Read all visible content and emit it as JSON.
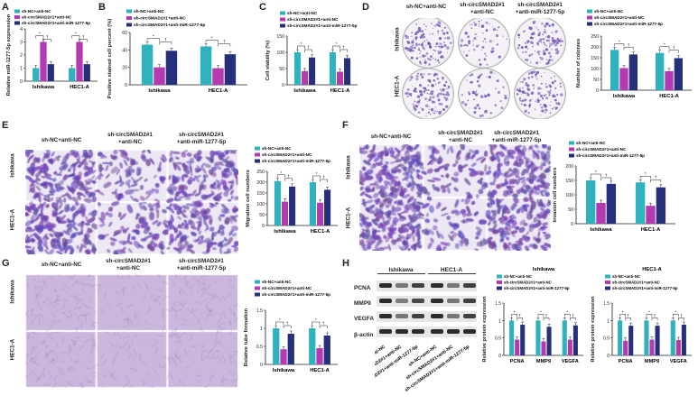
{
  "colors": {
    "teal": "#2eb2bd",
    "magenta": "#b43ab1",
    "navy": "#26307a",
    "stain": "#7a5cb8",
    "stainLight": "#c9bde6"
  },
  "groups": {
    "nc": "sh-NC+anti-NC",
    "circ": "sh-circSMAD2#1+anti-NC",
    "circ_miR": "sh-circSMAD2#1+anti-miR-1277-5p",
    "circ_hdr": "sh-circSMAD2#1",
    "anti_nc": "+anti-NC",
    "anti_mir": "+anti-miR-1277-5p",
    "circ_short": "sh-circSMAD2#1+anti-NC",
    "circ_miR_short": "sh-circSMAD2#1+anti-miR-1277-5p"
  },
  "cell_lines": {
    "ishikawa": "Ishikawa",
    "hec1a": "HEC1-A"
  },
  "panels": {
    "A": "A",
    "B": "B",
    "C": "C",
    "D": "D",
    "E": "E",
    "F": "F",
    "G": "G",
    "H": "H"
  },
  "legend_b": {
    "l1": "sh-NC+anti-NC",
    "l2": "sh-circSMAD2#1+anti-NC",
    "l3": "sh-circSMAD2#1+anti-miR-1277-5p"
  },
  "blot": {
    "top_ishikawa": "Ishikawa",
    "top_hec": "HEC1-A",
    "rows": [
      "PCNA",
      "MMP9",
      "VEGFA",
      "β-actin"
    ],
    "lanes": [
      "sh-NC+anti-NC",
      "sh-circSMAD2#1+anti-NC",
      "sh-circSMAD2#1+anti-miR-1277-5p",
      "sh-NC+anti-NC",
      "sh-circSMAD2#1+anti-NC",
      "sh-circSMAD2#1+anti-miR-1277-5p"
    ]
  },
  "chart_data": [
    {
      "id": "A",
      "type": "bar",
      "ylabel": "Relative miR-1277-5p expression",
      "categories": [
        "Ishikawa",
        "HEC1-A"
      ],
      "ylim": [
        0,
        4
      ],
      "yticks": [
        0,
        1,
        2,
        3,
        4
      ],
      "series": [
        {
          "name": "sh-NC+anti-NC",
          "values": [
            1.0,
            1.0
          ]
        },
        {
          "name": "sh-circSMAD2#1+anti-NC",
          "values": [
            3.0,
            3.0
          ]
        },
        {
          "name": "sh-circSMAD2#1+anti-miR-1277-5p",
          "values": [
            1.3,
            1.3
          ]
        }
      ]
    },
    {
      "id": "B",
      "type": "bar",
      "ylabel": "Positive stained cell percent (%)",
      "categories": [
        "Ishikawa",
        "HEC1-A"
      ],
      "ylim": [
        0,
        60
      ],
      "yticks": [
        0,
        20,
        40,
        60
      ],
      "series": [
        {
          "name": "sh-NC+anti-NC",
          "values": [
            46,
            44
          ]
        },
        {
          "name": "sh-circSMAD2#1+anti-NC",
          "values": [
            20,
            19
          ]
        },
        {
          "name": "sh-circSMAD2#1+anti-miR-1277-5p",
          "values": [
            39,
            35
          ]
        }
      ]
    },
    {
      "id": "C",
      "type": "bar",
      "ylabel": "Cell viability (%)",
      "categories": [
        "Ishikawa",
        "HEC1-A"
      ],
      "ylim": [
        0,
        150
      ],
      "yticks": [
        0,
        50,
        100,
        150
      ],
      "series": [
        {
          "name": "sh-NC+anti-NC",
          "values": [
            100,
            100
          ]
        },
        {
          "name": "sh-circSMAD2#1+anti-NC",
          "values": [
            42,
            40
          ]
        },
        {
          "name": "sh-circSMAD2#1+anti-miR-1277-5p",
          "values": [
            84,
            82
          ]
        }
      ]
    },
    {
      "id": "D",
      "type": "bar",
      "ylabel": "Number of colonies",
      "categories": [
        "Ishikawa",
        "HEC1-A"
      ],
      "ylim": [
        0,
        250
      ],
      "yticks": [
        0,
        50,
        100,
        150,
        200,
        250
      ],
      "series": [
        {
          "name": "sh-NC+anti-NC",
          "values": [
            186,
            172
          ]
        },
        {
          "name": "sh-circSMAD2#1+anti-NC",
          "values": [
            102,
            88
          ]
        },
        {
          "name": "sh-circSMAD2#1+anti-miR-1277-5p",
          "values": [
            165,
            148
          ]
        }
      ]
    },
    {
      "id": "E",
      "type": "bar",
      "ylabel": "Migration cell numbers",
      "categories": [
        "Ishikawa",
        "HEC1-A"
      ],
      "ylim": [
        0,
        250
      ],
      "yticks": [
        0,
        50,
        100,
        150,
        200,
        250
      ],
      "series": [
        {
          "name": "sh-NC+anti-NC",
          "values": [
            205,
            200
          ]
        },
        {
          "name": "sh-circSMAD2#1+anti-NC",
          "values": [
            110,
            105
          ]
        },
        {
          "name": "sh-circSMAD2#1+anti-miR-1277-5p",
          "values": [
            180,
            165
          ]
        }
      ]
    },
    {
      "id": "F",
      "type": "bar",
      "ylabel": "Invasion cell numbers",
      "categories": [
        "Ishikawa",
        "HEC1-A"
      ],
      "ylim": [
        0,
        200
      ],
      "yticks": [
        0,
        50,
        100,
        150,
        200
      ],
      "series": [
        {
          "name": "sh-NC+anti-NC",
          "values": [
            150,
            143
          ]
        },
        {
          "name": "sh-circSMAD2#1+anti-NC",
          "values": [
            72,
            62
          ]
        },
        {
          "name": "sh-circSMAD2#1+anti-miR-1277-5p",
          "values": [
            138,
            126
          ]
        }
      ]
    },
    {
      "id": "G",
      "type": "bar",
      "ylabel": "Relative tube formation",
      "categories": [
        "Ishikawa",
        "HEC1-A"
      ],
      "ylim": [
        0,
        1.5
      ],
      "yticks": [
        0,
        0.5,
        1.0,
        1.5
      ],
      "series": [
        {
          "name": "sh-NC+anti-NC",
          "values": [
            1.0,
            1.0
          ]
        },
        {
          "name": "sh-circSMAD2#1+anti-NC",
          "values": [
            0.42,
            0.45
          ]
        },
        {
          "name": "sh-circSMAD2#1+anti-miR-1277-5p",
          "values": [
            0.85,
            0.8
          ]
        }
      ]
    },
    {
      "id": "H1",
      "type": "bar",
      "title": "Ishikawa",
      "ylabel": "Relative protein expression",
      "categories": [
        "PCNA",
        "MMP9",
        "VEGFA"
      ],
      "ylim": [
        0,
        1.5
      ],
      "yticks": [
        0,
        0.5,
        1.0,
        1.5
      ],
      "series": [
        {
          "name": "sh-NC+anti-NC",
          "values": [
            1.0,
            1.0,
            1.0
          ]
        },
        {
          "name": "sh-circSMAD2#1+anti-NC",
          "values": [
            0.45,
            0.4,
            0.45
          ]
        },
        {
          "name": "sh-circSMAD2#1+anti-miR-1277-5p",
          "values": [
            0.88,
            0.82,
            0.86
          ]
        }
      ]
    },
    {
      "id": "H2",
      "type": "bar",
      "title": "HEC1-A",
      "ylabel": "Relative protein expression",
      "categories": [
        "PCNA",
        "MMP9",
        "VEGFA"
      ],
      "ylim": [
        0,
        1.5
      ],
      "yticks": [
        0,
        0.5,
        1.0,
        1.5
      ],
      "series": [
        {
          "name": "sh-NC+anti-NC",
          "values": [
            1.0,
            1.0,
            1.0
          ]
        },
        {
          "name": "sh-circSMAD2#1+anti-NC",
          "values": [
            0.42,
            0.45,
            0.44
          ]
        },
        {
          "name": "sh-circSMAD2#1+anti-miR-1277-5p",
          "values": [
            0.85,
            0.85,
            0.88
          ]
        }
      ]
    }
  ]
}
